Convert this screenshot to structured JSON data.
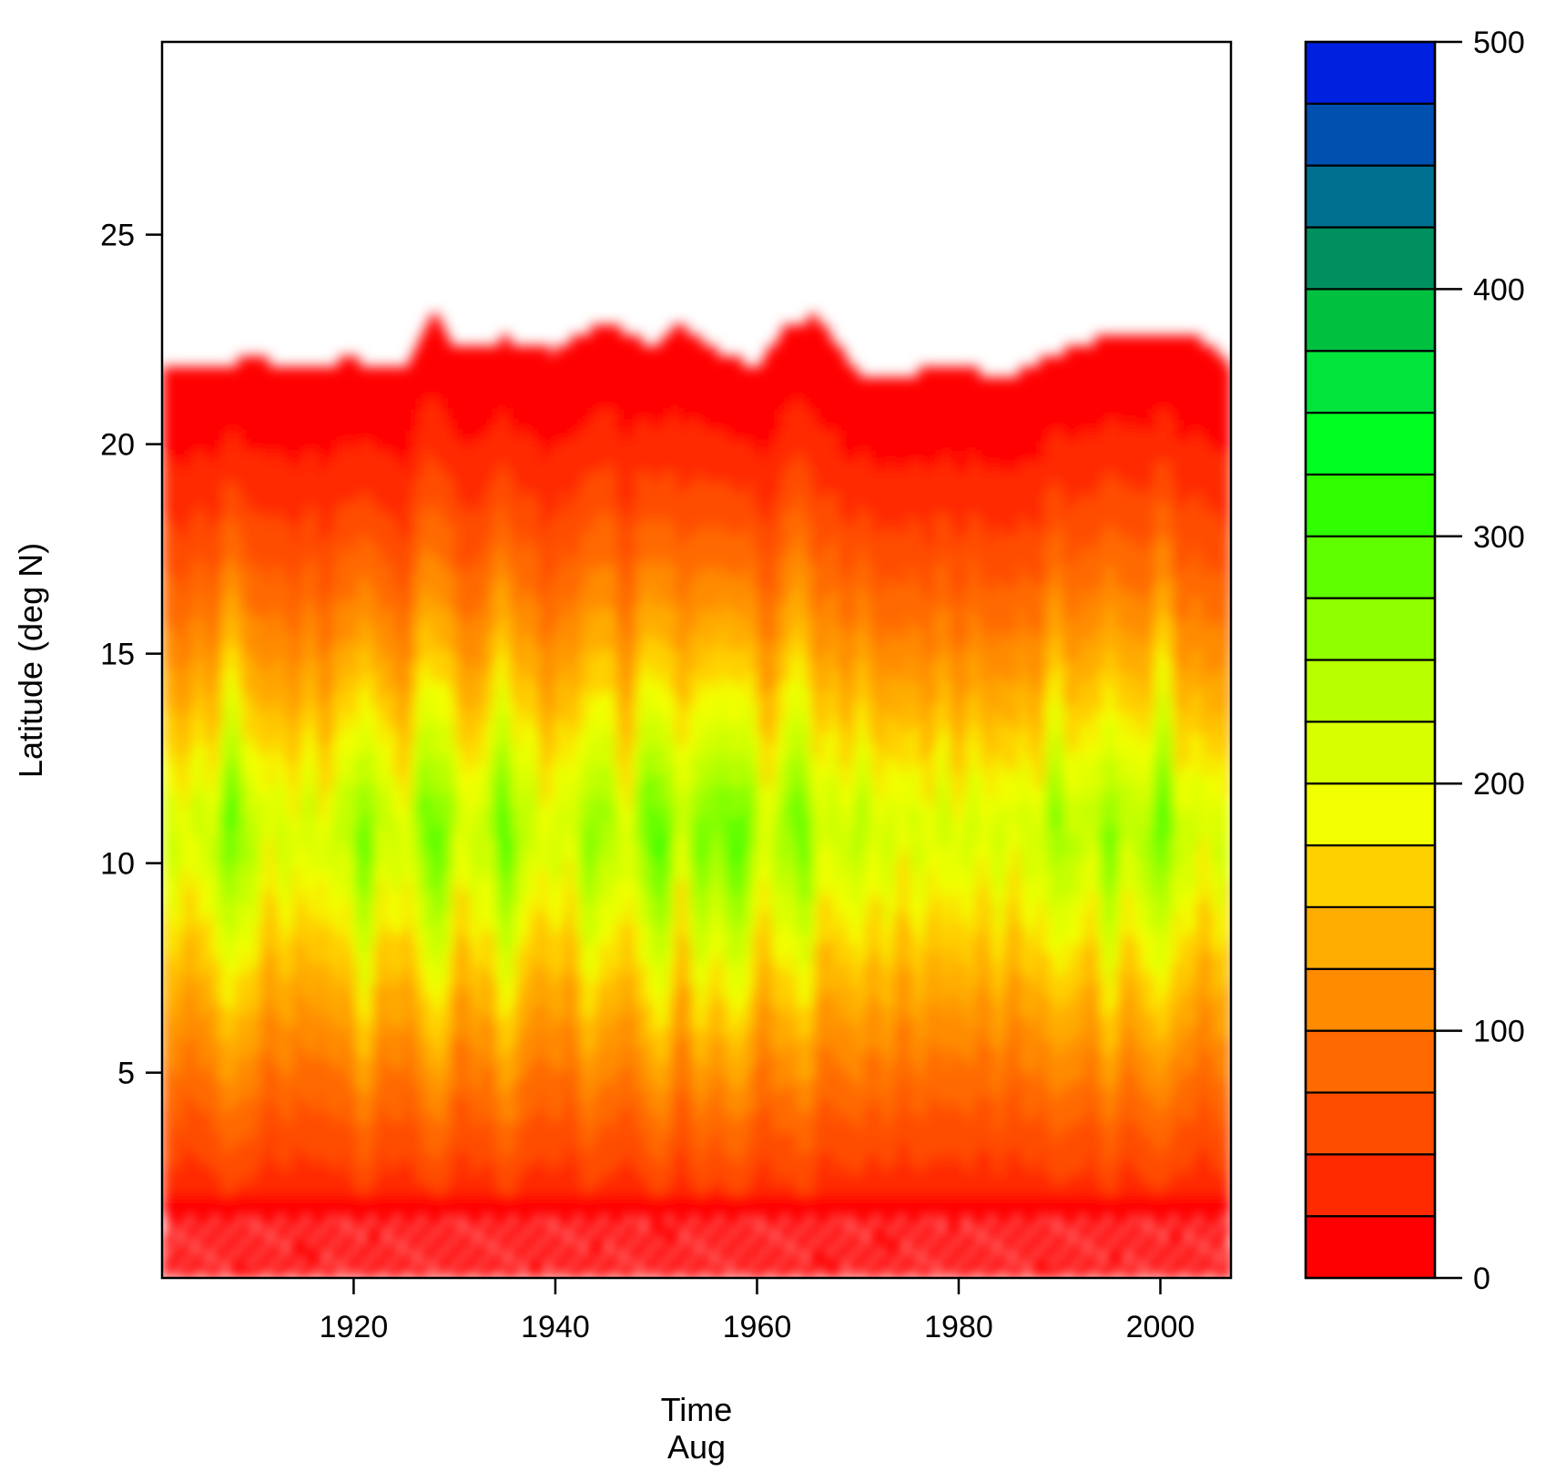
{
  "chart_data": {
    "type": "heatmap",
    "subtype": "filled-contour",
    "xlabel": "Time",
    "xlabel_sub": "Aug",
    "ylabel": "Latitude (deg N)",
    "xlim": [
      1901,
      2007
    ],
    "ylim": [
      0.1,
      29.6
    ],
    "x_ticks": [
      1920,
      1940,
      1960,
      1980,
      2000
    ],
    "y_ticks": [
      5,
      10,
      15,
      20,
      25
    ],
    "colorbar": {
      "min": 0,
      "max": 500,
      "step": 25,
      "ticks": [
        0,
        100,
        200,
        300,
        400,
        500
      ],
      "placement": "right",
      "colors": [
        "#ff0000",
        "#ff2a00",
        "#ff4d00",
        "#ff6a00",
        "#ff8c00",
        "#ffac00",
        "#ffd000",
        "#f2ff00",
        "#d7ff00",
        "#b8ff00",
        "#90ff00",
        "#60ff00",
        "#30ff00",
        "#00ff20",
        "#00e43c",
        "#00c040",
        "#009060",
        "#007090",
        "#0050b0",
        "#0020e0"
      ]
    },
    "field": {
      "description_of_values": "value by time (x) and latitude (y)",
      "upper_edge_lat": {
        "x": [
          1901,
          1905,
          1910,
          1915,
          1920,
          1925,
          1928,
          1930,
          1935,
          1940,
          1945,
          1950,
          1952,
          1955,
          1960,
          1963,
          1966,
          1970,
          1975,
          1980,
          1985,
          1990,
          1995,
          2000,
          2004,
          2007
        ],
        "y": [
          21.9,
          21.9,
          22.0,
          21.9,
          22.0,
          21.8,
          23.2,
          22.3,
          22.5,
          22.2,
          23.0,
          22.2,
          23.0,
          22.3,
          21.8,
          22.9,
          23.0,
          21.7,
          21.7,
          21.8,
          21.6,
          22.2,
          22.6,
          22.6,
          22.5,
          21.9
        ]
      },
      "peak_band_lat": [
        9,
        13
      ],
      "peak_years": [
        1908,
        1921,
        1928,
        1935,
        1944,
        1950,
        1955,
        1958,
        1964,
        1970,
        1975,
        1990,
        1995,
        2000
      ],
      "peak_values": [
        300,
        290,
        310,
        305,
        280,
        320,
        300,
        320,
        300,
        240,
        210,
        270,
        280,
        300
      ]
    }
  }
}
